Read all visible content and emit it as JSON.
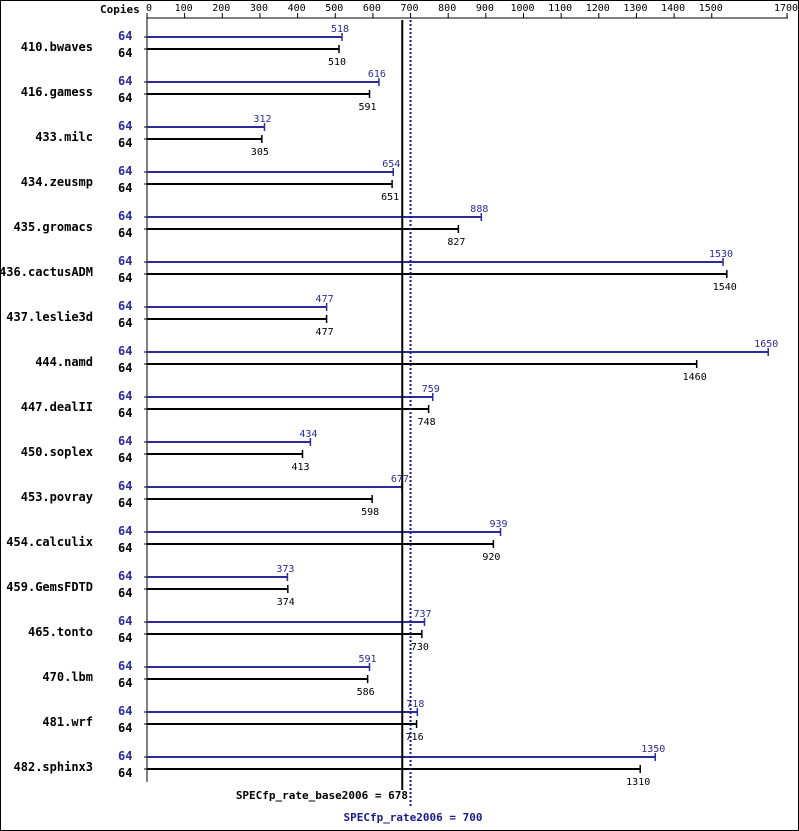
{
  "chart_data": {
    "type": "bar",
    "axis_header": "Copies",
    "x_ticks": [
      0,
      100,
      200,
      300,
      400,
      500,
      600,
      700,
      800,
      900,
      1000,
      1100,
      1200,
      1300,
      1400,
      1500,
      1700
    ],
    "xlim": [
      0,
      1700
    ],
    "grid": false,
    "colors": {
      "peak": "#2b2b9c",
      "base": "#000000"
    },
    "categories": [
      "410.bwaves",
      "416.gamess",
      "433.milc",
      "434.zeusmp",
      "435.gromacs",
      "436.cactusADM",
      "437.leslie3d",
      "444.namd",
      "447.dealII",
      "450.soplex",
      "453.povray",
      "454.calculix",
      "459.GemsFDTD",
      "465.tonto",
      "470.lbm",
      "481.wrf",
      "482.sphinx3"
    ],
    "series": [
      {
        "name": "peak",
        "copies": [
          "64",
          "64",
          "64",
          "64",
          "64",
          "64",
          "64",
          "64",
          "64",
          "64",
          "64",
          "64",
          "64",
          "64",
          "64",
          "64",
          "64"
        ],
        "values": [
          518,
          616,
          312,
          654,
          888,
          1530,
          477,
          1650,
          759,
          434,
          677,
          939,
          373,
          737,
          591,
          718,
          1350
        ],
        "labels": [
          "518",
          "616",
          "312",
          "654",
          "888",
          "1530",
          "477",
          "1650",
          "759",
          "434",
          "677",
          "939",
          "373",
          "737",
          "591",
          "718",
          "1350"
        ]
      },
      {
        "name": "base",
        "copies": [
          "64",
          "64",
          "64",
          "64",
          "64",
          "64",
          "64",
          "64",
          "64",
          "64",
          "64",
          "64",
          "64",
          "64",
          "64",
          "64",
          "64"
        ],
        "values": [
          510,
          591,
          305,
          651,
          827,
          1540,
          477,
          1460,
          748,
          413,
          598,
          920,
          374,
          730,
          586,
          716,
          1310
        ],
        "labels": [
          "510",
          "591",
          "305",
          "651",
          "827",
          "1540",
          "477",
          "1460",
          "748",
          "413",
          "598",
          "920",
          "374",
          "730",
          "586",
          "716",
          "1310"
        ]
      }
    ],
    "reference_lines": [
      {
        "name": "base",
        "label": "SPECfp_rate_base2006 = 678",
        "value": 678
      },
      {
        "name": "peak",
        "label": "SPECfp_rate2006 = 700",
        "value": 700
      }
    ]
  }
}
